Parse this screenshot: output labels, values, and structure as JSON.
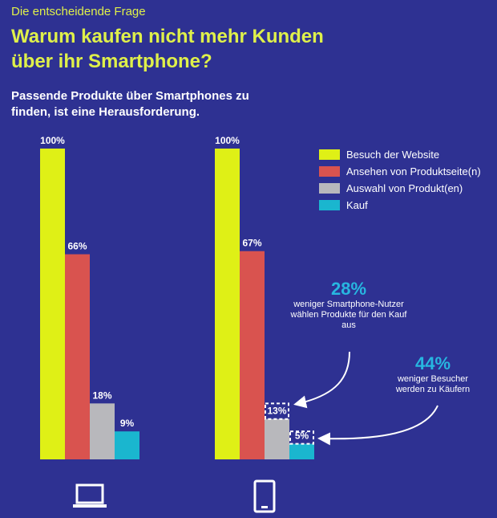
{
  "header": {
    "kicker": "Die entscheidende Frage",
    "title": "Warum kaufen nicht mehr Kunden über ihr Smartphone?",
    "subtitle": "Passende Produkte über Smartphones zu finden, ist eine Herausforderung."
  },
  "legend": [
    {
      "label": "Besuch der Website",
      "color": "#dff016"
    },
    {
      "label": "Ansehen von Produktseite(n)",
      "color": "#d9534f"
    },
    {
      "label": "Auswahl von Produkt(en)",
      "color": "#b8b8bc"
    },
    {
      "label": "Kauf",
      "color": "#1ab6cf"
    }
  ],
  "callouts": {
    "selection": {
      "value": "28%",
      "text": "weniger Smartphone-Nutzer wählen Produkte für den Kauf aus"
    },
    "purchase": {
      "value": "44%",
      "text": "weniger Besucher werden zu Käufern"
    }
  },
  "devices": [
    {
      "icon": "laptop-icon"
    },
    {
      "icon": "smartphone-icon"
    }
  ],
  "chart_data": {
    "type": "bar",
    "categories": [
      "Laptop",
      "Smartphone"
    ],
    "series": [
      {
        "name": "Besuch der Website",
        "values": [
          100,
          100
        ],
        "labels": [
          "100%",
          "100%"
        ]
      },
      {
        "name": "Ansehen von Produktseite(n)",
        "values": [
          66,
          67
        ],
        "labels": [
          "66%",
          "67%"
        ]
      },
      {
        "name": "Auswahl von Produkt(en)",
        "values": [
          18,
          13
        ],
        "labels": [
          "18%",
          "13%"
        ]
      },
      {
        "name": "Kauf",
        "values": [
          9,
          5
        ],
        "labels": [
          "9%",
          "5%"
        ]
      }
    ],
    "ylim": [
      0,
      100
    ],
    "grid": false,
    "legend_position": "top-right"
  }
}
